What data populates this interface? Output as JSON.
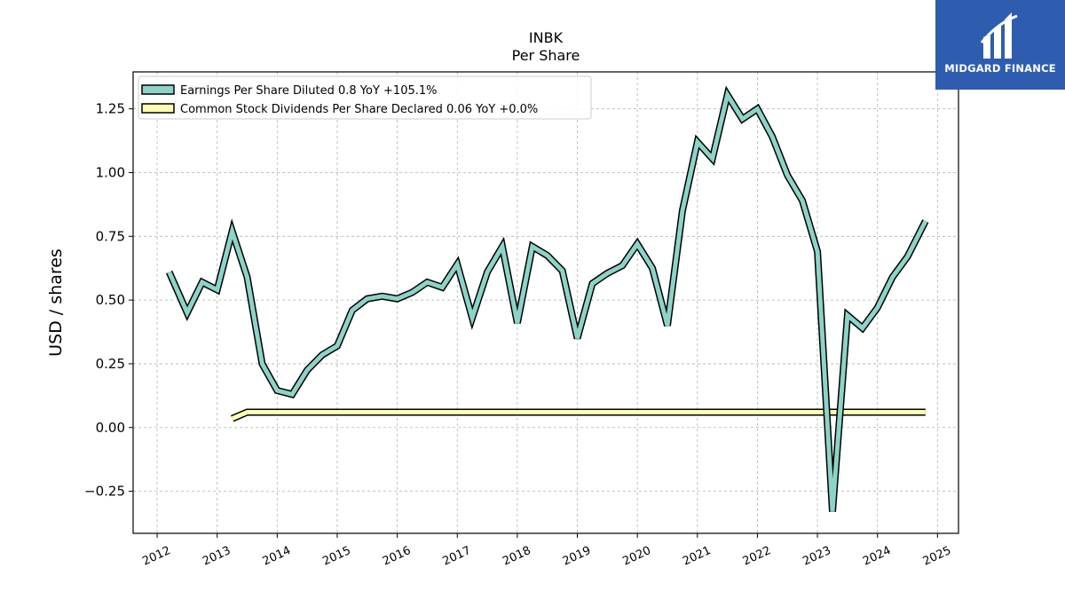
{
  "brand": {
    "name": "MIDGARD FINANCE",
    "bg_color": "#2e5db0"
  },
  "chart_data": {
    "type": "line",
    "title": "INBK",
    "subtitle": "Per  Share",
    "ylabel": "USD / shares",
    "xlabel": "",
    "xlim": [
      2011.6,
      2025.35
    ],
    "ylim": [
      -0.415,
      1.395
    ],
    "yticks": [
      -0.25,
      0.0,
      0.25,
      0.5,
      0.75,
      1.0,
      1.25
    ],
    "ytick_labels": [
      "−0.25",
      "0.00",
      "0.25",
      "0.50",
      "0.75",
      "1.00",
      "1.25"
    ],
    "xticks": [
      2012,
      2013,
      2014,
      2015,
      2016,
      2017,
      2018,
      2019,
      2020,
      2021,
      2022,
      2023,
      2024,
      2025
    ],
    "xtick_labels": [
      "2012",
      "2013",
      "2014",
      "2015",
      "2016",
      "2017",
      "2018",
      "2019",
      "2020",
      "2021",
      "2022",
      "2023",
      "2024",
      "2025"
    ],
    "grid": true,
    "legend_position": "top-left",
    "series": [
      {
        "name": "Earnings Per Share Diluted",
        "legend_label": "Earnings Per Share Diluted  0.8 YoY +105.1%",
        "color": "#8dd3c7",
        "x": [
          2012.2,
          2012.5,
          2012.75,
          2013.0,
          2013.25,
          2013.5,
          2013.75,
          2014.0,
          2014.25,
          2014.5,
          2014.75,
          2015.0,
          2015.25,
          2015.5,
          2015.75,
          2016.0,
          2016.25,
          2016.5,
          2016.75,
          2017.0,
          2017.25,
          2017.5,
          2017.75,
          2018.0,
          2018.25,
          2018.5,
          2018.75,
          2019.0,
          2019.25,
          2019.5,
          2019.75,
          2020.0,
          2020.25,
          2020.5,
          2020.75,
          2021.0,
          2021.25,
          2021.5,
          2021.75,
          2022.0,
          2022.25,
          2022.5,
          2022.75,
          2023.0,
          2023.25,
          2023.5,
          2023.75,
          2024.0,
          2024.25,
          2024.5,
          2024.8
        ],
        "y": [
          0.61,
          0.45,
          0.57,
          0.54,
          0.77,
          0.59,
          0.25,
          0.145,
          0.13,
          0.225,
          0.285,
          0.32,
          0.46,
          0.505,
          0.515,
          0.505,
          0.53,
          0.57,
          0.55,
          0.64,
          0.43,
          0.61,
          0.71,
          0.41,
          0.71,
          0.675,
          0.615,
          0.35,
          0.565,
          0.605,
          0.635,
          0.72,
          0.625,
          0.4,
          0.85,
          1.12,
          1.055,
          1.305,
          1.21,
          1.25,
          1.14,
          0.99,
          0.89,
          0.69,
          -0.33,
          0.44,
          0.39,
          0.47,
          0.59,
          0.67,
          0.81
        ]
      },
      {
        "name": "Common Stock Dividends Per Share Declared",
        "legend_label": "Common Stock Dividends Per Share Declared  0.06 YoY +0.0%",
        "color": "#ffffb3",
        "x": [
          2013.25,
          2013.5,
          2024.8
        ],
        "y": [
          0.035,
          0.06,
          0.06
        ]
      }
    ]
  }
}
